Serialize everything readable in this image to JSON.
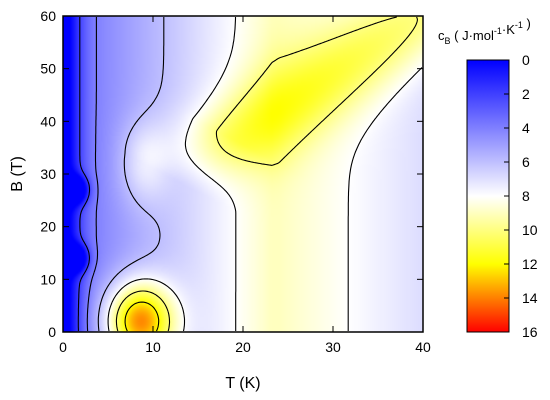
{
  "chart_data": {
    "type": "heatmap",
    "title": "",
    "xlabel": "T (K)",
    "ylabel": "B (T)",
    "xlim": [
      0,
      40
    ],
    "ylim": [
      0,
      60
    ],
    "x_ticks": [
      "0",
      "10",
      "20",
      "30",
      "40"
    ],
    "y_ticks": [
      "0",
      "10",
      "20",
      "30",
      "40",
      "50",
      "60"
    ],
    "colorbar": {
      "symbol": "c",
      "subscript": "B",
      "units": "( J·mol-1·K-1 )",
      "range": [
        0,
        16
      ],
      "ticks": [
        "0",
        "2",
        "4",
        "6",
        "8",
        "10",
        "12",
        "14",
        "16"
      ],
      "colors": [
        "#0000ff",
        "#ffffff",
        "#ffff00",
        "#ff0000"
      ]
    },
    "features": [
      {
        "kind": "maximum",
        "T": 8.5,
        "B": 2,
        "value": 16
      },
      {
        "kind": "ridge",
        "from_T": 15,
        "from_B": 32,
        "to_T": 40,
        "to_B": 60,
        "value": 11
      },
      {
        "kind": "ridge",
        "from_T": 7,
        "from_B": 25,
        "to_T": 11,
        "to_B": 40,
        "value": 10
      },
      {
        "kind": "local_minimum",
        "T": 1.5,
        "B": 14,
        "value": 2
      },
      {
        "kind": "local_minimum",
        "T": 1.5,
        "B": 27,
        "value": 2
      },
      {
        "kind": "saddle",
        "T": 10.5,
        "B": 27,
        "value": 8
      }
    ],
    "contour_levels": [
      2,
      4,
      6,
      8,
      10,
      12,
      14
    ]
  }
}
